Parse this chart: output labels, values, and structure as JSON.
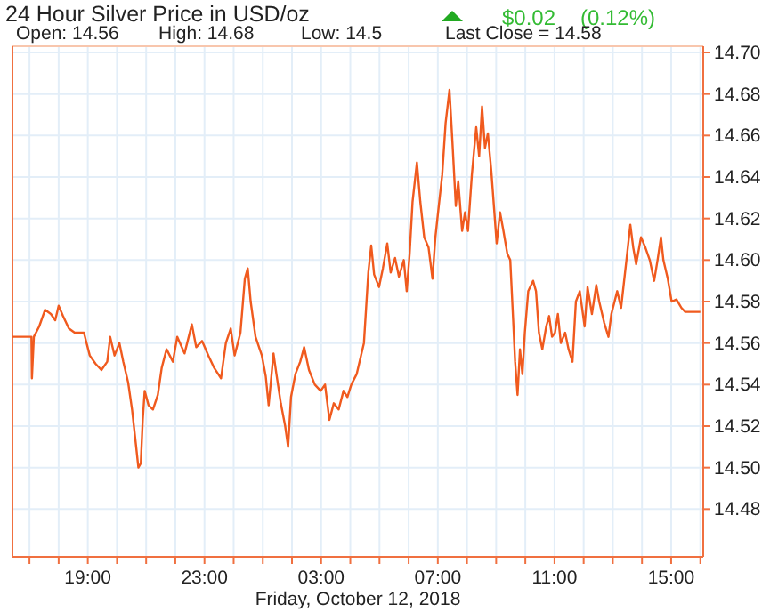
{
  "chart_data": {
    "type": "line",
    "title": "24 Hour Silver Price in USD/oz",
    "xlabel": "Friday, October 12, 2018",
    "annotations": [
      "$0.02",
      "(0.12%)",
      "Open: 14.56",
      "High: 14.68",
      "Low: 14.5",
      "Last Close = 14.58"
    ],
    "xlim": [
      "2018-10-11T16:25",
      "2018-10-12T16:06"
    ],
    "ylim": [
      14.457,
      14.703
    ],
    "xticks": [
      {
        "value": "2018-10-11T17:00",
        "label": null
      },
      {
        "value": "2018-10-11T18:00",
        "label": null
      },
      {
        "value": "2018-10-11T19:00",
        "label": "19:00"
      },
      {
        "value": "2018-10-11T20:00",
        "label": null
      },
      {
        "value": "2018-10-11T21:00",
        "label": null
      },
      {
        "value": "2018-10-11T22:00",
        "label": null
      },
      {
        "value": "2018-10-11T23:00",
        "label": "23:00"
      },
      {
        "value": "2018-10-12T00:00",
        "label": null
      },
      {
        "value": "2018-10-12T01:00",
        "label": null
      },
      {
        "value": "2018-10-12T02:00",
        "label": null
      },
      {
        "value": "2018-10-12T03:00",
        "label": "03:00"
      },
      {
        "value": "2018-10-12T04:00",
        "label": null
      },
      {
        "value": "2018-10-12T05:00",
        "label": null
      },
      {
        "value": "2018-10-12T06:00",
        "label": null
      },
      {
        "value": "2018-10-12T07:00",
        "label": "07:00"
      },
      {
        "value": "2018-10-12T08:00",
        "label": null
      },
      {
        "value": "2018-10-12T09:00",
        "label": null
      },
      {
        "value": "2018-10-12T10:00",
        "label": null
      },
      {
        "value": "2018-10-12T11:00",
        "label": "11:00"
      },
      {
        "value": "2018-10-12T12:00",
        "label": null
      },
      {
        "value": "2018-10-12T13:00",
        "label": null
      },
      {
        "value": "2018-10-12T14:00",
        "label": null
      },
      {
        "value": "2018-10-12T15:00",
        "label": "15:00"
      },
      {
        "value": "2018-10-12T16:00",
        "label": null
      }
    ],
    "yticks": [
      {
        "value": 14.48,
        "label": "14.48"
      },
      {
        "value": 14.5,
        "label": "14.50"
      },
      {
        "value": 14.52,
        "label": "14.52"
      },
      {
        "value": 14.54,
        "label": "14.54"
      },
      {
        "value": 14.56,
        "label": "14.56"
      },
      {
        "value": 14.58,
        "label": "14.58"
      },
      {
        "value": 14.6,
        "label": "14.60"
      },
      {
        "value": 14.62,
        "label": "14.62"
      },
      {
        "value": 14.64,
        "label": "14.64"
      },
      {
        "value": 14.66,
        "label": "14.66"
      },
      {
        "value": 14.68,
        "label": "14.68"
      },
      {
        "value": 14.7,
        "label": "14.70"
      }
    ],
    "grid": true,
    "marker": "none",
    "line_style": "solid",
    "series": [
      {
        "color": "#f05a1e",
        "x": [
          "2018-10-11T16:25",
          "2018-10-11T17:04",
          "2018-10-11T17:05",
          "2018-10-11T17:09",
          "2018-10-11T17:20",
          "2018-10-11T17:32",
          "2018-10-11T17:44",
          "2018-10-11T17:53",
          "2018-10-11T18:00",
          "2018-10-11T18:09",
          "2018-10-11T18:21",
          "2018-10-11T18:33",
          "2018-10-11T18:52",
          "2018-10-11T19:04",
          "2018-10-11T19:16",
          "2018-10-11T19:28",
          "2018-10-11T19:40",
          "2018-10-11T19:46",
          "2018-10-11T19:55",
          "2018-10-11T20:05",
          "2018-10-11T20:13",
          "2018-10-11T20:23",
          "2018-10-11T20:31",
          "2018-10-11T20:39",
          "2018-10-11T20:44",
          "2018-10-11T20:49",
          "2018-10-11T20:53",
          "2018-10-11T20:57",
          "2018-10-11T21:05",
          "2018-10-11T21:14",
          "2018-10-11T21:24",
          "2018-10-11T21:32",
          "2018-10-11T21:42",
          "2018-10-11T21:55",
          "2018-10-11T22:04",
          "2018-10-11T22:19",
          "2018-10-11T22:34",
          "2018-10-11T22:43",
          "2018-10-11T22:55",
          "2018-10-11T23:08",
          "2018-10-11T23:20",
          "2018-10-11T23:34",
          "2018-10-11T23:44",
          "2018-10-11T23:54",
          "2018-10-12T00:02",
          "2018-10-12T00:14",
          "2018-10-12T00:23",
          "2018-10-12T00:29",
          "2018-10-12T00:35",
          "2018-10-12T00:45",
          "2018-10-12T00:58",
          "2018-10-12T01:06",
          "2018-10-12T01:12",
          "2018-10-12T01:22",
          "2018-10-12T01:28",
          "2018-10-12T01:37",
          "2018-10-12T01:46",
          "2018-10-12T01:52",
          "2018-10-12T01:58",
          "2018-10-12T02:07",
          "2018-10-12T02:17",
          "2018-10-12T02:25",
          "2018-10-12T02:35",
          "2018-10-12T02:47",
          "2018-10-12T02:59",
          "2018-10-12T03:08",
          "2018-10-12T03:17",
          "2018-10-12T03:26",
          "2018-10-12T03:36",
          "2018-10-12T03:46",
          "2018-10-12T03:54",
          "2018-10-12T04:02",
          "2018-10-12T04:13",
          "2018-10-12T04:22",
          "2018-10-12T04:28",
          "2018-10-12T04:37",
          "2018-10-12T04:43",
          "2018-10-12T04:49",
          "2018-10-12T04:59",
          "2018-10-12T05:07",
          "2018-10-12T05:16",
          "2018-10-12T05:23",
          "2018-10-12T05:32",
          "2018-10-12T05:40",
          "2018-10-12T05:50",
          "2018-10-12T05:56",
          "2018-10-12T06:02",
          "2018-10-12T06:08",
          "2018-10-12T06:17",
          "2018-10-12T06:24",
          "2018-10-12T06:32",
          "2018-10-12T06:41",
          "2018-10-12T06:49",
          "2018-10-12T06:55",
          "2018-10-12T07:01",
          "2018-10-12T07:09",
          "2018-10-12T07:16",
          "2018-10-12T07:24",
          "2018-10-12T07:30",
          "2018-10-12T07:37",
          "2018-10-12T07:42",
          "2018-10-12T07:50",
          "2018-10-12T07:56",
          "2018-10-12T08:02",
          "2018-10-12T08:10",
          "2018-10-12T08:19",
          "2018-10-12T08:25",
          "2018-10-12T08:31",
          "2018-10-12T08:37",
          "2018-10-12T08:43",
          "2018-10-12T08:50",
          "2018-10-12T08:56",
          "2018-10-12T09:01",
          "2018-10-12T09:08",
          "2018-10-12T09:15",
          "2018-10-12T09:23",
          "2018-10-12T09:29",
          "2018-10-12T09:35",
          "2018-10-12T09:39",
          "2018-10-12T09:44",
          "2018-10-12T09:49",
          "2018-10-12T09:54",
          "2018-10-12T09:59",
          "2018-10-12T10:06",
          "2018-10-12T10:16",
          "2018-10-12T10:22",
          "2018-10-12T10:28",
          "2018-10-12T10:35",
          "2018-10-12T10:43",
          "2018-10-12T10:49",
          "2018-10-12T10:55",
          "2018-10-12T11:01",
          "2018-10-12T11:07",
          "2018-10-12T11:13",
          "2018-10-12T11:22",
          "2018-10-12T11:29",
          "2018-10-12T11:37",
          "2018-10-12T11:44",
          "2018-10-12T11:52",
          "2018-10-12T12:02",
          "2018-10-12T12:08",
          "2018-10-12T12:17",
          "2018-10-12T12:26",
          "2018-10-12T12:32",
          "2018-10-12T12:42",
          "2018-10-12T12:51",
          "2018-10-12T12:57",
          "2018-10-12T13:09",
          "2018-10-12T13:17",
          "2018-10-12T13:28",
          "2018-10-12T13:36",
          "2018-10-12T13:42",
          "2018-10-12T13:48",
          "2018-10-12T13:58",
          "2018-10-12T14:07",
          "2018-10-12T14:16",
          "2018-10-12T14:25",
          "2018-10-12T14:32",
          "2018-10-12T14:39",
          "2018-10-12T14:44",
          "2018-10-12T14:53",
          "2018-10-12T15:01",
          "2018-10-12T15:11",
          "2018-10-12T15:21",
          "2018-10-12T15:29",
          "2018-10-12T16:00"
        ],
        "values": [
          14.563,
          14.563,
          14.543,
          14.563,
          14.568,
          14.576,
          14.574,
          14.571,
          14.578,
          14.573,
          14.567,
          14.565,
          14.565,
          14.554,
          14.55,
          14.547,
          14.551,
          14.563,
          14.554,
          14.56,
          14.551,
          14.541,
          14.528,
          14.511,
          14.5,
          14.502,
          14.523,
          14.537,
          14.53,
          14.528,
          14.535,
          14.548,
          14.557,
          14.551,
          14.563,
          14.555,
          14.569,
          14.558,
          14.561,
          14.554,
          14.548,
          14.543,
          14.56,
          14.567,
          14.554,
          14.565,
          14.591,
          14.596,
          14.58,
          14.563,
          14.554,
          14.544,
          14.53,
          14.555,
          14.545,
          14.531,
          14.52,
          14.51,
          14.534,
          14.545,
          14.551,
          14.558,
          14.547,
          14.54,
          14.537,
          14.54,
          14.523,
          14.531,
          14.528,
          14.537,
          14.534,
          14.54,
          14.545,
          14.554,
          14.56,
          14.594,
          14.607,
          14.593,
          14.587,
          14.596,
          14.608,
          14.594,
          14.601,
          14.592,
          14.6,
          14.585,
          14.603,
          14.628,
          14.647,
          14.628,
          14.611,
          14.606,
          14.591,
          14.611,
          14.624,
          14.641,
          14.666,
          14.682,
          14.657,
          14.626,
          14.638,
          14.614,
          14.623,
          14.614,
          14.641,
          14.664,
          14.65,
          14.674,
          14.654,
          14.661,
          14.643,
          14.624,
          14.608,
          14.623,
          14.614,
          14.603,
          14.6,
          14.571,
          14.551,
          14.535,
          14.557,
          14.545,
          14.565,
          14.585,
          14.59,
          14.585,
          14.565,
          14.557,
          14.568,
          14.573,
          14.563,
          14.565,
          14.574,
          14.56,
          14.565,
          14.557,
          14.551,
          14.58,
          14.585,
          14.568,
          14.587,
          14.574,
          14.588,
          14.58,
          14.57,
          14.563,
          14.574,
          14.585,
          14.577,
          14.6,
          14.617,
          14.606,
          14.598,
          14.611,
          14.606,
          14.6,
          14.59,
          14.6,
          14.611,
          14.6,
          14.591,
          14.58,
          14.581,
          14.577,
          14.575,
          14.575
        ]
      }
    ]
  }
}
